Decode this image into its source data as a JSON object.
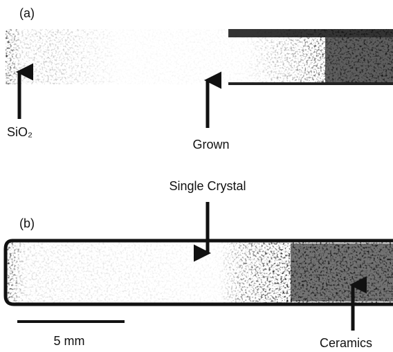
{
  "panels": [
    {
      "label": "(a)",
      "annotations": [
        "SiO₂",
        "Grown"
      ]
    },
    {
      "label": "(b)",
      "annotations": [
        "Single Crystal",
        "Ceramics"
      ]
    }
  ],
  "scale_bar": "5 mm"
}
